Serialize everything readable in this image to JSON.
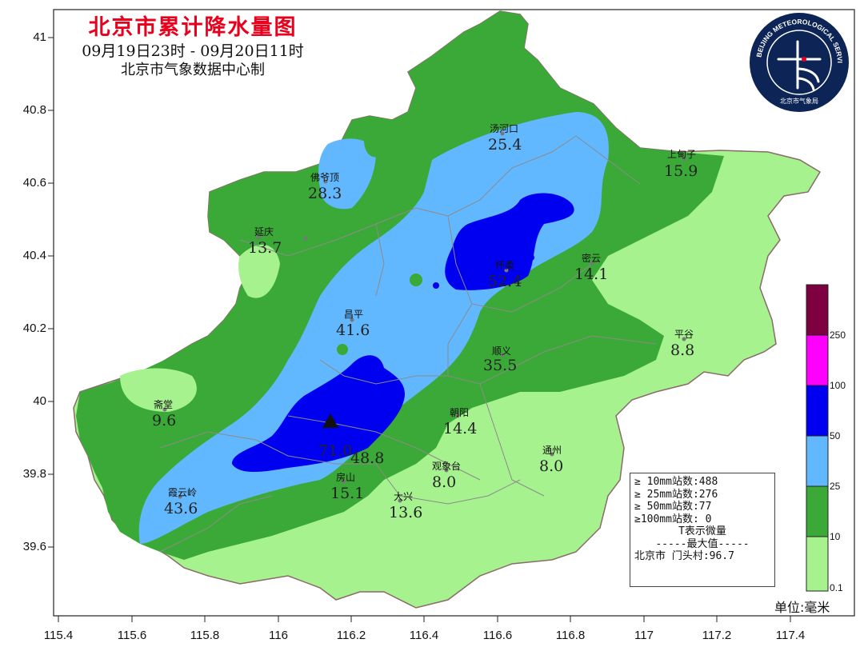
{
  "title": {
    "main": "北京市累计降水量图",
    "period": "09月19日23时 - 09月20日11时",
    "source": "北京市气象数据中心制"
  },
  "logo": {
    "ring_text": "BEIJING METEOROLOGICAL SERVICE",
    "bottom_text": "北京市气象局",
    "icon": "beijing-meteorological-service-logo"
  },
  "axes": {
    "lat_ticks": [
      "41",
      "40.8",
      "40.6",
      "40.4",
      "40.2",
      "40",
      "39.8",
      "39.6"
    ],
    "lon_ticks": [
      "115.4",
      "115.6",
      "115.8",
      "116",
      "116.2",
      "116.4",
      "116.6",
      "116.8",
      "117",
      "117.2",
      "117.4"
    ]
  },
  "stations": [
    {
      "name": "汤河口",
      "value": "25.4"
    },
    {
      "name": "上甸子",
      "value": "15.9"
    },
    {
      "name": "佛爷顶",
      "value": "28.3"
    },
    {
      "name": "延庆",
      "value": "13.7"
    },
    {
      "name": "怀柔",
      "value": "52.4"
    },
    {
      "name": "密云",
      "value": "14.1"
    },
    {
      "name": "昌平",
      "value": "41.6"
    },
    {
      "name": "平谷",
      "value": "8.8"
    },
    {
      "name": "顺义",
      "value": "35.5"
    },
    {
      "name": "斋堂",
      "value": "9.6"
    },
    {
      "name": "朝阳",
      "value": "14.4"
    },
    {
      "name": "通州",
      "value": "8.0"
    },
    {
      "name": "观象台",
      "value": "8.0"
    },
    {
      "name": "霞云岭",
      "value": "43.6"
    },
    {
      "name": "房山",
      "value": "15.1"
    },
    {
      "name": "大兴",
      "value": "13.6"
    },
    {
      "name": "",
      "value": "71.0"
    },
    {
      "name": "",
      "value": "48.8"
    }
  ],
  "stats": {
    "lines": [
      "≥ 10mm站数:488",
      "≥ 25mm站数:276",
      "≥ 50mm站数:77",
      "≥100mm站数: 0",
      "T表示微量",
      "-----最大值-----",
      "北京市 门头村:96.7"
    ]
  },
  "legend": {
    "labels": [
      "250",
      "100",
      "50",
      "25",
      "10",
      "0.1"
    ],
    "colors": [
      "#7d0040",
      "#ff00ff",
      "#0000f0",
      "#62b8ff",
      "#3ba937",
      "#a6f28f"
    ],
    "unit": "单位:毫米"
  },
  "colors": {
    "level_0_1": "#a6f28f",
    "level_10": "#3ba937",
    "level_25": "#62b8ff",
    "level_50": "#0000f0",
    "title_red": "#e8001c"
  }
}
